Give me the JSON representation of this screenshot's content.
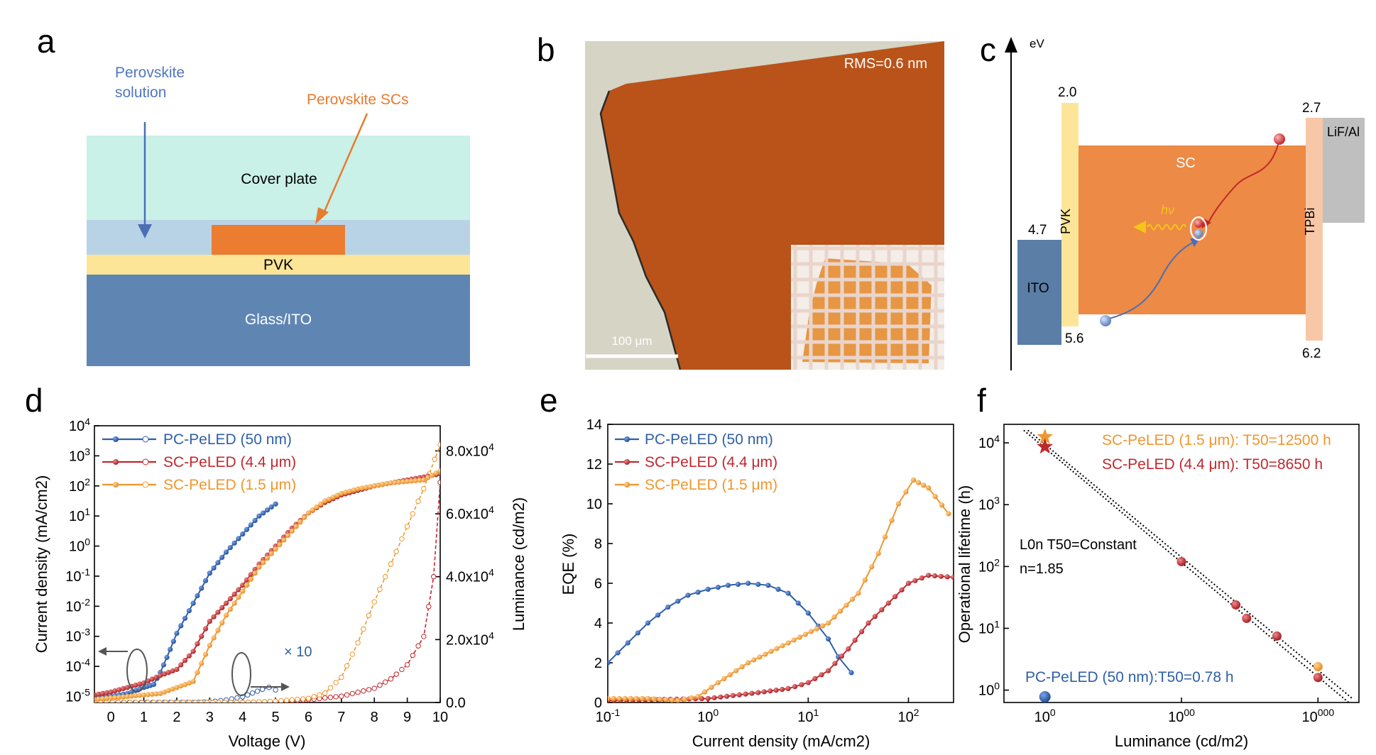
{
  "panels": {
    "a": {
      "label": "a",
      "solution_label_1": "Perovskite",
      "solution_label_2": "solution",
      "crystal_label": "Perovskite SCs",
      "cover_label": "Cover plate",
      "pvk_label": "PVK",
      "glass_label": "Glass/ITO",
      "colors": {
        "cover": "#c9f1e7",
        "gap": "#b9d3e6",
        "crystal": "#ec7c30",
        "pvk": "#fde597",
        "glass": "#5f86b3"
      }
    },
    "b": {
      "label": "b",
      "rms_label": "RMS=0.6 nm",
      "scale_label": "100 μm",
      "colors": {
        "crystal": "#b9531a",
        "background": "#d6d4c4"
      }
    },
    "c": {
      "label": "c",
      "axis_label": "eV",
      "layers": {
        "ito": "ITO",
        "pvk": "PVK",
        "sc": "SC",
        "tpbi": "TPBi",
        "lif": "LiF/Al"
      },
      "energies": {
        "pvk_lumo": "2.0",
        "ito": "4.7",
        "pvk_homo": "5.6",
        "tpbi_lumo": "2.7",
        "tpbi_homo": "6.2"
      },
      "emission_label": "hν",
      "colors": {
        "ito": "#5a7ea6",
        "pvk": "#fde597",
        "sc": "#ed8a45",
        "tpbi": "#f8c7a8",
        "lif": "#bfbfbf"
      }
    }
  },
  "chart_data": [
    {
      "panel": "d",
      "type": "line",
      "xlabel": "Voltage (V)",
      "ylabel": "Current density (mA/cm2)",
      "y2label": "Luminance (cd/m2)",
      "xlim": [
        -0.5,
        10
      ],
      "ylim_log": [
        -5.2,
        4
      ],
      "y2lim": [
        0,
        88000
      ],
      "x_ticks": [
        "0",
        "1",
        "2",
        "3",
        "4",
        "5",
        "6",
        "7",
        "8",
        "9",
        "10"
      ],
      "y_ticks": [
        "10-5",
        "10-4",
        "10-3",
        "10-2",
        "10-1",
        "100",
        "101",
        "102",
        "103",
        "104"
      ],
      "y2_ticks": [
        "0.0",
        "2.0x104",
        "4.0x104",
        "6.0x104",
        "8.0x104"
      ],
      "legend": [
        "PC-PeLED (50 nm)",
        "SC-PeLED (4.4 μm)",
        "SC-PeLED (1.5 μm)"
      ],
      "annotation": "× 10",
      "series": [
        {
          "name": "PC-PeLED (50 nm)",
          "color": "#2e5fa6",
          "current_log10": [
            [
              -0.5,
              -5.0
            ],
            [
              0,
              -5.0
            ],
            [
              0.5,
              -4.9
            ],
            [
              1,
              -4.7
            ],
            [
              1.3,
              -4.6
            ],
            [
              1.5,
              -4.2
            ],
            [
              1.7,
              -3.7
            ],
            [
              2,
              -2.9
            ],
            [
              2.5,
              -1.9
            ],
            [
              3,
              -0.9
            ],
            [
              3.5,
              -0.2
            ],
            [
              4,
              0.4
            ],
            [
              4.5,
              1.0
            ],
            [
              5,
              1.4
            ]
          ],
          "luminance": [
            [
              -0.5,
              0
            ],
            [
              2.5,
              0
            ],
            [
              3,
              200
            ],
            [
              3.5,
              800
            ],
            [
              4,
              1800
            ],
            [
              4.3,
              3000
            ],
            [
              4.6,
              4200
            ],
            [
              4.8,
              4800
            ],
            [
              5,
              4000
            ]
          ]
        },
        {
          "name": "SC-PeLED (4.4 μm)",
          "color": "#c0282d",
          "current_log10": [
            [
              -0.5,
              -4.95
            ],
            [
              0,
              -4.85
            ],
            [
              0.5,
              -4.7
            ],
            [
              1,
              -4.55
            ],
            [
              1.5,
              -4.3
            ],
            [
              2,
              -4.1
            ],
            [
              2.5,
              -3.5
            ],
            [
              3,
              -2.5
            ],
            [
              3.5,
              -1.9
            ],
            [
              4,
              -1.3
            ],
            [
              4.5,
              -0.6
            ],
            [
              5,
              0.0
            ],
            [
              5.5,
              0.6
            ],
            [
              6,
              1.1
            ],
            [
              6.5,
              1.45
            ],
            [
              7,
              1.7
            ],
            [
              7.5,
              1.85
            ],
            [
              8,
              2.0
            ],
            [
              8.5,
              2.1
            ],
            [
              9,
              2.2
            ],
            [
              9.5,
              2.3
            ],
            [
              10,
              2.4
            ]
          ],
          "luminance": [
            [
              -0.5,
              0
            ],
            [
              4,
              0
            ],
            [
              5,
              300
            ],
            [
              6,
              900
            ],
            [
              7,
              2000
            ],
            [
              8,
              4500
            ],
            [
              8.5,
              7500
            ],
            [
              9,
              12000
            ],
            [
              9.5,
              21000
            ],
            [
              9.8,
              40000
            ],
            [
              10,
              70000
            ]
          ]
        },
        {
          "name": "SC-PeLED (1.5 μm)",
          "color": "#f0962e",
          "current_log10": [
            [
              -0.5,
              -5.1
            ],
            [
              0,
              -5.05
            ],
            [
              0.5,
              -5.0
            ],
            [
              1,
              -4.95
            ],
            [
              1.5,
              -4.9
            ],
            [
              2,
              -4.7
            ],
            [
              2.5,
              -4.5
            ],
            [
              3,
              -3.3
            ],
            [
              3.5,
              -2.3
            ],
            [
              4,
              -1.5
            ],
            [
              4.5,
              -0.7
            ],
            [
              5,
              -0.1
            ],
            [
              5.5,
              0.5
            ],
            [
              6,
              1.1
            ],
            [
              6.5,
              1.5
            ],
            [
              7,
              1.75
            ],
            [
              7.5,
              1.9
            ],
            [
              8,
              2.0
            ],
            [
              8.5,
              2.1
            ],
            [
              9,
              2.15
            ],
            [
              9.5,
              2.2
            ],
            [
              10,
              2.5
            ]
          ],
          "luminance": [
            [
              -0.5,
              0
            ],
            [
              4,
              0
            ],
            [
              5,
              400
            ],
            [
              6,
              1300
            ],
            [
              6.5,
              3000
            ],
            [
              7,
              8000
            ],
            [
              7.5,
              19000
            ],
            [
              8,
              32000
            ],
            [
              8.5,
              44000
            ],
            [
              9,
              56000
            ],
            [
              9.5,
              68000
            ],
            [
              10,
              82000
            ]
          ]
        }
      ]
    },
    {
      "panel": "e",
      "type": "line",
      "xlabel": "Current density (mA/cm2)",
      "ylabel": "EQE (%)",
      "xlim_log": [
        -1,
        2.45
      ],
      "ylim": [
        0,
        14
      ],
      "x_ticks": [
        "10-1",
        "100",
        "101",
        "102"
      ],
      "y_ticks": [
        "0",
        "2",
        "4",
        "6",
        "8",
        "10",
        "12",
        "14"
      ],
      "legend": [
        "PC-PeLED (50 nm)",
        "SC-PeLED (4.4 μm)",
        "SC-PeLED (1.5 μm)"
      ],
      "series": [
        {
          "name": "PC-PeLED (50 nm)",
          "color": "#2e5fa6",
          "points": [
            [
              -1,
              2.0
            ],
            [
              -0.8,
              3.0
            ],
            [
              -0.6,
              4.0
            ],
            [
              -0.4,
              4.8
            ],
            [
              -0.2,
              5.4
            ],
            [
              0,
              5.7
            ],
            [
              0.2,
              5.9
            ],
            [
              0.4,
              6.0
            ],
            [
              0.6,
              5.9
            ],
            [
              0.8,
              5.5
            ],
            [
              1.0,
              4.5
            ],
            [
              1.2,
              3.2
            ],
            [
              1.3,
              2.3
            ],
            [
              1.43,
              1.5
            ]
          ]
        },
        {
          "name": "SC-PeLED (4.4 μm)",
          "color": "#c0282d",
          "points": [
            [
              -1,
              0.1
            ],
            [
              -0.5,
              0.15
            ],
            [
              0,
              0.2
            ],
            [
              0.5,
              0.5
            ],
            [
              0.8,
              0.7
            ],
            [
              1.0,
              1.0
            ],
            [
              1.2,
              1.6
            ],
            [
              1.4,
              2.7
            ],
            [
              1.6,
              4.0
            ],
            [
              1.8,
              5.0
            ],
            [
              2.0,
              6.0
            ],
            [
              2.2,
              6.4
            ],
            [
              2.45,
              6.3
            ]
          ]
        },
        {
          "name": "SC-PeLED (1.5 μm)",
          "color": "#f0962e",
          "points": [
            [
              -1,
              0.2
            ],
            [
              -0.6,
              0.2
            ],
            [
              -0.3,
              0.1
            ],
            [
              -0.1,
              0.3
            ],
            [
              0.1,
              1.0
            ],
            [
              0.4,
              2.0
            ],
            [
              0.8,
              3.0
            ],
            [
              1.2,
              4.0
            ],
            [
              1.5,
              5.5
            ],
            [
              1.7,
              7.5
            ],
            [
              1.9,
              10.0
            ],
            [
              2.05,
              11.2
            ],
            [
              2.2,
              10.8
            ],
            [
              2.4,
              9.5
            ]
          ]
        }
      ]
    },
    {
      "panel": "f",
      "type": "scatter",
      "xlabel": "Luminance (cd/m2)",
      "ylabel": "Operational lifetime (h)",
      "xlim_log": [
        1.7,
        4.3
      ],
      "ylim_log": [
        -0.2,
        4.3
      ],
      "x_ticks": [
        "100",
        "1000",
        "10000"
      ],
      "y_ticks": [
        "100",
        "101",
        "102",
        "103",
        "104"
      ],
      "legend_orange": "SC-PeLED (1.5 μm): T50=12500 h",
      "legend_red": "SC-PeLED (4.4 μm): T50=8650 h",
      "legend_blue": "PC-PeLED (50 nm):T50=0.78 h",
      "equation": "L0n T50=Constant",
      "exponent": "n=1.85",
      "series": [
        {
          "name": "SC-PeLED (1.5 μm)",
          "color": "#f0962e",
          "star": [
            100,
            12500
          ],
          "points": [
            [
              10000,
              2.4
            ]
          ]
        },
        {
          "name": "SC-PeLED (4.4 μm)",
          "color": "#c0282d",
          "star": [
            100,
            8650
          ],
          "points": [
            [
              1000,
              120
            ],
            [
              2500,
              24
            ],
            [
              3000,
              14.5
            ],
            [
              5000,
              7.5
            ],
            [
              10000,
              1.6
            ]
          ]
        },
        {
          "name": "PC-PeLED (50 nm)",
          "color": "#2e5fa6",
          "points": [
            [
              100,
              0.78
            ]
          ]
        }
      ],
      "fit_lines": [
        [
          [
            70,
            16000
          ],
          [
            19000,
            0.5
          ]
        ],
        [
          [
            75,
            16000
          ],
          [
            18000,
            0.72
          ]
        ]
      ]
    }
  ]
}
